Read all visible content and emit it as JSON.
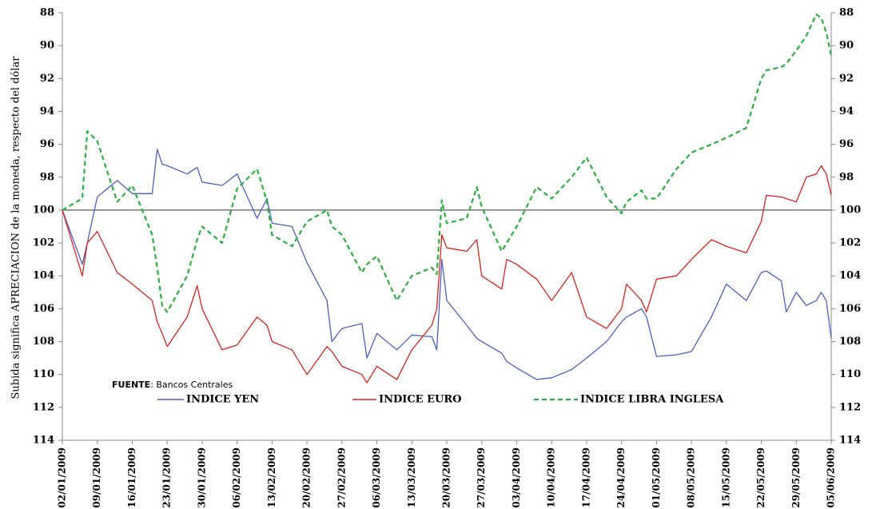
{
  "chart_data": {
    "type": "line",
    "y_axis_label": "Subida significa APRECIACION de la moneda, respecto del dólar",
    "annotation": {
      "bold": "FUENTE",
      "text": ": Bancos Centrales"
    },
    "ylim": [
      88,
      114
    ],
    "y_reversed": true,
    "yticks": [
      88,
      90,
      92,
      94,
      96,
      98,
      100,
      102,
      104,
      106,
      108,
      110,
      112,
      114
    ],
    "reference_line": 100,
    "legend": "bottom",
    "xticks": [
      "02/01/2009",
      "09/01/2009",
      "16/01/2009",
      "23/01/2009",
      "30/01/2009",
      "06/02/2009",
      "13/02/2009",
      "20/02/2009",
      "27/02/2009",
      "06/03/2009",
      "13/03/2009",
      "20/03/2009",
      "27/03/2009",
      "03/04/2009",
      "10/04/2009",
      "17/04/2009",
      "24/04/2009",
      "01/05/2009",
      "08/05/2009",
      "15/05/2009",
      "22/05/2009",
      "29/05/2009",
      "05/06/2009"
    ],
    "x": [
      "02/01/2009",
      "06/01/2009",
      "07/01/2009",
      "09/01/2009",
      "13/01/2009",
      "16/01/2009",
      "20/01/2009",
      "21/01/2009",
      "22/01/2009",
      "23/01/2009",
      "27/01/2009",
      "29/01/2009",
      "30/01/2009",
      "03/02/2009",
      "06/02/2009",
      "10/02/2009",
      "12/02/2009",
      "13/02/2009",
      "17/02/2009",
      "20/02/2009",
      "24/02/2009",
      "25/02/2009",
      "27/02/2009",
      "03/03/2009",
      "04/03/2009",
      "06/03/2009",
      "10/03/2009",
      "13/03/2009",
      "17/03/2009",
      "18/03/2009",
      "19/03/2009",
      "20/03/2009",
      "24/03/2009",
      "26/03/2009",
      "27/03/2009",
      "31/03/2009",
      "01/04/2009",
      "03/04/2009",
      "07/04/2009",
      "10/04/2009",
      "14/04/2009",
      "17/04/2009",
      "21/04/2009",
      "24/04/2009",
      "25/04/2009",
      "28/04/2009",
      "29/04/2009",
      "01/05/2009",
      "05/05/2009",
      "08/05/2009",
      "12/05/2009",
      "15/05/2009",
      "19/05/2009",
      "22/05/2009",
      "23/05/2009",
      "26/05/2009",
      "27/05/2009",
      "29/05/2009",
      "31/05/2009",
      "02/06/2009",
      "03/06/2009",
      "04/06/2009",
      "05/06/2009"
    ],
    "series": [
      {
        "name": "INDICE YEN",
        "color": "#4a5fc8",
        "dash": "solid",
        "values": [
          100,
          103.3,
          102,
          99.2,
          98.2,
          99,
          99,
          96.3,
          97.2,
          97.3,
          97.8,
          97.4,
          98.3,
          98.5,
          97.8,
          100.5,
          99.3,
          100.8,
          101,
          103.2,
          105.5,
          108,
          107.2,
          106.9,
          109,
          107.5,
          108.5,
          107.6,
          107.7,
          108.5,
          103,
          105.5,
          107,
          107.8,
          108,
          108.7,
          109.2,
          109.6,
          110.3,
          110.2,
          109.7,
          109,
          108,
          106.8,
          106.5,
          106,
          106.5,
          108.9,
          108.8,
          108.6,
          106.5,
          104.5,
          105.5,
          103.8,
          103.7,
          104.3,
          106.2,
          105,
          105.8,
          105.5,
          105,
          105.5,
          107.8
        ]
      },
      {
        "name": "INDICE EURO",
        "color": "#e0201b",
        "dash": "solid",
        "values": [
          100,
          104,
          102,
          101.3,
          103.8,
          104.5,
          105.5,
          106.8,
          107.5,
          108.3,
          106.5,
          104.6,
          106,
          108.5,
          108.2,
          106.5,
          107,
          108,
          108.5,
          110,
          108.3,
          108.6,
          109.5,
          110,
          110.5,
          109.5,
          110.3,
          108.5,
          107,
          106,
          101.5,
          102.3,
          102.5,
          101.8,
          104,
          104.8,
          103,
          103.3,
          104.2,
          105.5,
          103.8,
          106.5,
          107.2,
          106,
          104.5,
          105.5,
          106.2,
          104.2,
          104,
          103,
          101.8,
          102.2,
          102.6,
          100.7,
          99.1,
          99.2,
          99.3,
          99.5,
          98,
          97.8,
          97.3,
          97.8,
          99.1
        ]
      },
      {
        "name": "INDICE LIBRA INGLESA",
        "color": "#27b33a",
        "dash": "dashed",
        "values": [
          100,
          99.3,
          95.2,
          95.8,
          99.5,
          98.5,
          101.5,
          103.5,
          105.8,
          106.2,
          104,
          101.8,
          101,
          102,
          98.7,
          97.5,
          99.5,
          101.5,
          102.2,
          100.7,
          100,
          101,
          101.5,
          103.8,
          103.3,
          102.8,
          105.5,
          104,
          103.5,
          103.9,
          99.4,
          100.8,
          100.5,
          98.6,
          99.8,
          102.5,
          102,
          101,
          98.6,
          99.3,
          98,
          96.8,
          99.2,
          100.2,
          99.5,
          98.8,
          99.3,
          99.3,
          97.5,
          96.5,
          96,
          95.6,
          95,
          92,
          91.5,
          91.3,
          91.1,
          90.3,
          89.4,
          88.1,
          88.3,
          89.2,
          90.6
        ]
      }
    ]
  }
}
